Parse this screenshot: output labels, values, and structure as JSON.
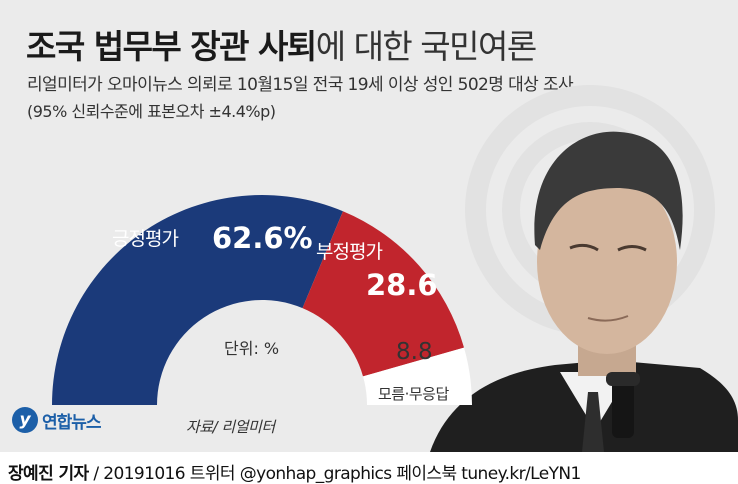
{
  "title": {
    "bold": "조국 법무부 장관 사퇴",
    "light": "에 대한 국민여론"
  },
  "subtitle": "리얼미터가 오마이뉴스 의뢰로 10월15일 전국 19세 이상 성인 502명 대상 조사",
  "note": "(95% 신뢰수준에 표본오차 ±4.4%p)",
  "unit_label": "단위: %",
  "source": "자료/ 리얼미터",
  "logo": {
    "mark": "y",
    "text": "연합뉴스"
  },
  "footer": {
    "reporter": "장예진 기자",
    "rest": " / 20191016 트위터 @yonhap_graphics  페이스북 tuney.kr/LeYN1"
  },
  "colors": {
    "positive": "#1b3a7a",
    "negative": "#c1252d",
    "unknown": "#ffffff",
    "background": "#ebebeb"
  },
  "chart_data": {
    "type": "pie",
    "style": "half-donut",
    "categories": [
      "긍정평가",
      "부정평가",
      "모름·무응답"
    ],
    "values": [
      62.6,
      28.6,
      8.8
    ],
    "value_labels": [
      "62.6%",
      "28.6",
      "8.8"
    ],
    "title": "조국 법무부 장관 사퇴에 대한 국민여론",
    "unit": "%"
  }
}
